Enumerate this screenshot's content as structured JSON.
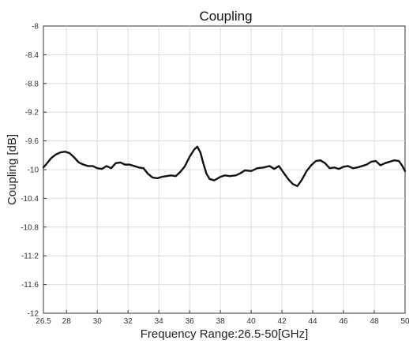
{
  "chart_data": {
    "type": "line",
    "title": "Coupling",
    "xlabel": "Frequency Range:26.5-50[GHz]",
    "ylabel": "Coupling [dB]",
    "xlim": [
      26.5,
      50
    ],
    "ylim": [
      -12,
      -8
    ],
    "x_ticks": [
      26.5,
      28,
      30,
      32,
      34,
      36,
      38,
      40,
      42,
      44,
      46,
      48,
      50
    ],
    "x_tick_labels": [
      "26.5",
      "28",
      "30",
      "32",
      "34",
      "36",
      "38",
      "40",
      "42",
      "44",
      "46",
      "48",
      "50"
    ],
    "y_ticks": [
      -12,
      -11.6,
      -11.2,
      -10.8,
      -10.4,
      -10,
      -9.6,
      -9.2,
      -8.8,
      -8.4,
      -8
    ],
    "y_tick_labels": [
      "-12",
      "-11.6",
      "-11.2",
      "-10.8",
      "-10.4",
      "-10",
      "-9.6",
      "-9.2",
      "-8.8",
      "-8.4",
      "-8"
    ],
    "grid": true,
    "series_color": "#111111",
    "series": [
      {
        "x": [
          26.5,
          26.7,
          27.0,
          27.3,
          27.6,
          27.9,
          28.2,
          28.5,
          28.8,
          29.1,
          29.4,
          29.7,
          30.0,
          30.3,
          30.6,
          30.9,
          31.2,
          31.5,
          31.8,
          32.1,
          32.4,
          32.7,
          33.0,
          33.3,
          33.6,
          33.9,
          34.2,
          34.5,
          34.8,
          35.1,
          35.4,
          35.7,
          36.0,
          36.3,
          36.5,
          36.7,
          36.9,
          37.1,
          37.3,
          37.6,
          38.0,
          38.3,
          38.6,
          39.0,
          39.3,
          39.6,
          40.0,
          40.4,
          40.8,
          41.2,
          41.5,
          41.8,
          42.1,
          42.4,
          42.7,
          43.0,
          43.3,
          43.6,
          43.9,
          44.2,
          44.5,
          44.8,
          45.1,
          45.4,
          45.7,
          46.0,
          46.3,
          46.6,
          46.9,
          47.2,
          47.5,
          47.8,
          48.1,
          48.4,
          48.7,
          49.0,
          49.3,
          49.6,
          49.8,
          50.0
        ],
        "y": [
          -9.97,
          -9.92,
          -9.84,
          -9.79,
          -9.76,
          -9.75,
          -9.77,
          -9.83,
          -9.9,
          -9.93,
          -9.95,
          -9.95,
          -9.98,
          -9.99,
          -9.95,
          -9.98,
          -9.91,
          -9.9,
          -9.93,
          -9.93,
          -9.95,
          -9.97,
          -9.98,
          -10.06,
          -10.11,
          -10.12,
          -10.1,
          -10.09,
          -10.08,
          -10.09,
          -10.03,
          -9.95,
          -9.82,
          -9.72,
          -9.68,
          -9.76,
          -9.92,
          -10.06,
          -10.13,
          -10.15,
          -10.1,
          -10.08,
          -10.09,
          -10.08,
          -10.05,
          -10.01,
          -10.02,
          -9.98,
          -9.97,
          -9.95,
          -9.99,
          -9.95,
          -10.04,
          -10.13,
          -10.2,
          -10.23,
          -10.14,
          -10.02,
          -9.94,
          -9.88,
          -9.87,
          -9.91,
          -9.98,
          -9.97,
          -9.99,
          -9.96,
          -9.95,
          -9.98,
          -9.97,
          -9.95,
          -9.93,
          -9.89,
          -9.88,
          -9.94,
          -9.91,
          -9.89,
          -9.87,
          -9.88,
          -9.94,
          -10.02
        ]
      }
    ]
  }
}
